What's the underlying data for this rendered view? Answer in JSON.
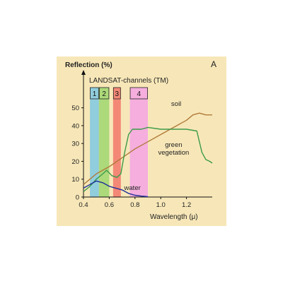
{
  "chart_data": {
    "type": "line",
    "panel_label": "A",
    "ylabel": "Reflection (%)",
    "xlabel": "Wavelength (μ)",
    "xlim": [
      0.4,
      1.4
    ],
    "ylim": [
      0,
      55
    ],
    "xticks": [
      {
        "value": 0.4,
        "label": "0.4"
      },
      {
        "value": 0.6,
        "label": "0.6"
      },
      {
        "value": 0.8,
        "label": "0.8"
      },
      {
        "value": 1.0,
        "label": "1.0"
      },
      {
        "value": 1.2,
        "label": "1.2"
      }
    ],
    "yticks": [
      {
        "value": 0,
        "label": "0"
      },
      {
        "value": 10,
        "label": "10"
      },
      {
        "value": 20,
        "label": "20"
      },
      {
        "value": 30,
        "label": "30"
      },
      {
        "value": 40,
        "label": "40"
      },
      {
        "value": 50,
        "label": "50"
      }
    ],
    "grid": false,
    "bands_title": "LANDSAT-channels (TM)",
    "bands": [
      {
        "label": "1",
        "x0": 0.45,
        "x1": 0.52,
        "color": "#7ec8e3"
      },
      {
        "label": "2",
        "x0": 0.52,
        "x1": 0.6,
        "color": "#9fd66e"
      },
      {
        "label": "3",
        "x0": 0.63,
        "x1": 0.69,
        "color": "#f2776b"
      },
      {
        "label": "4",
        "x0": 0.76,
        "x1": 0.9,
        "color": "#f5a3e3"
      }
    ],
    "series": [
      {
        "name": "soil",
        "color": "#b07a3a",
        "label_at": [
          1.12,
          51
        ],
        "points": [
          [
            0.4,
            7
          ],
          [
            0.5,
            13
          ],
          [
            0.6,
            17
          ],
          [
            0.7,
            22
          ],
          [
            0.8,
            27
          ],
          [
            0.9,
            31
          ],
          [
            1.0,
            35
          ],
          [
            1.1,
            39
          ],
          [
            1.2,
            43
          ],
          [
            1.25,
            46
          ],
          [
            1.3,
            47
          ],
          [
            1.35,
            46
          ],
          [
            1.4,
            46
          ]
        ]
      },
      {
        "name": "green vegetation",
        "color": "#3d9a4a",
        "label_at": [
          1.1,
          28
        ],
        "points": [
          [
            0.4,
            3
          ],
          [
            0.45,
            6
          ],
          [
            0.5,
            10
          ],
          [
            0.55,
            13
          ],
          [
            0.58,
            15
          ],
          [
            0.62,
            12
          ],
          [
            0.66,
            11
          ],
          [
            0.69,
            13
          ],
          [
            0.72,
            25
          ],
          [
            0.75,
            35
          ],
          [
            0.78,
            38
          ],
          [
            0.85,
            38
          ],
          [
            0.9,
            39
          ],
          [
            1.0,
            38
          ],
          [
            1.1,
            38
          ],
          [
            1.2,
            38
          ],
          [
            1.28,
            37
          ],
          [
            1.3,
            31
          ],
          [
            1.32,
            25
          ],
          [
            1.35,
            21
          ],
          [
            1.38,
            20
          ],
          [
            1.4,
            19
          ]
        ]
      },
      {
        "name": "water",
        "color": "#1f2f9a",
        "label_at": [
          0.78,
          4
        ],
        "points": [
          [
            0.4,
            5
          ],
          [
            0.45,
            7
          ],
          [
            0.5,
            9
          ],
          [
            0.55,
            8
          ],
          [
            0.6,
            6
          ],
          [
            0.65,
            5
          ],
          [
            0.7,
            4
          ],
          [
            0.75,
            2
          ],
          [
            0.8,
            1
          ],
          [
            0.85,
            0.5
          ],
          [
            0.9,
            0.2
          ]
        ]
      }
    ]
  }
}
